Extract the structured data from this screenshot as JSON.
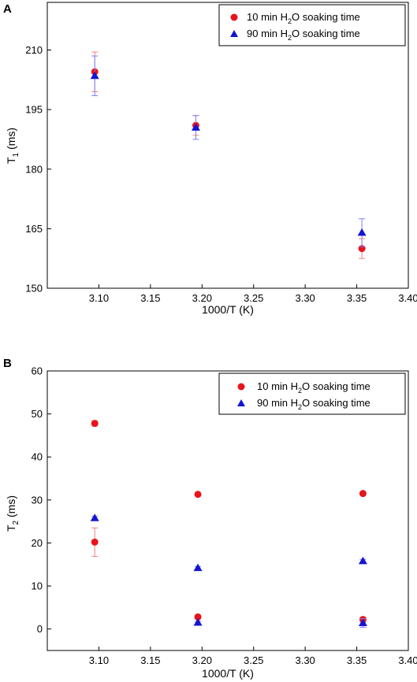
{
  "colors": {
    "series1": "#e8141b",
    "series2": "#1414d2",
    "err1": "#f08080",
    "err2": "#7f7fff"
  },
  "chart_data": [
    {
      "panel": "A",
      "type": "scatter",
      "xlabel": "1000/T (K)",
      "ylabel": "T",
      "ylabel_sub": "1",
      "ylabel_unit": " (ms)",
      "xlim": [
        3.05,
        3.4
      ],
      "ylim": [
        150,
        222
      ],
      "xticks": [
        "3.10",
        "3.15",
        "3.20",
        "3.25",
        "3.30",
        "3.35",
        "3.40"
      ],
      "yticks": [
        "150",
        "165",
        "180",
        "195",
        "210"
      ],
      "legend_position": "top-right",
      "series": [
        {
          "name_pre": "10 min H",
          "name_sub": "2",
          "name_post": "O soaking time",
          "marker": "circle",
          "points": [
            {
              "x": 3.096,
              "y": 204.5,
              "err": 5.0
            },
            {
              "x": 3.194,
              "y": 191.0,
              "err": 2.5
            },
            {
              "x": 3.355,
              "y": 160.0,
              "err": 2.5
            }
          ]
        },
        {
          "name_pre": "90 min H",
          "name_sub": "2",
          "name_post": "O soaking time",
          "marker": "triangle",
          "points": [
            {
              "x": 3.096,
              "y": 203.5,
              "err": 5.0
            },
            {
              "x": 3.194,
              "y": 190.5,
              "err": 3.0
            },
            {
              "x": 3.355,
              "y": 164.0,
              "err": 3.5
            }
          ]
        }
      ]
    },
    {
      "panel": "B",
      "type": "scatter",
      "xlabel": "1000/T (K)",
      "ylabel": "T",
      "ylabel_sub": "2",
      "ylabel_unit": " (ms)",
      "xlim": [
        3.05,
        3.4
      ],
      "ylim": [
        -5,
        60
      ],
      "xticks": [
        "3.10",
        "3.15",
        "3.20",
        "3.25",
        "3.30",
        "3.35",
        "3.40"
      ],
      "yticks": [
        "0",
        "10",
        "20",
        "30",
        "40",
        "50",
        "60"
      ],
      "legend_position": "top-right",
      "series": [
        {
          "name_pre": "10 min H",
          "name_sub": "2",
          "name_post": "O soaking time",
          "marker": "circle",
          "points": [
            {
              "x": 3.096,
              "y": 47.8,
              "err": 0.6
            },
            {
              "x": 3.096,
              "y": 20.2,
              "err": 3.3
            },
            {
              "x": 3.196,
              "y": 31.3,
              "err": 0.3
            },
            {
              "x": 3.196,
              "y": 2.8,
              "err": 0.4
            },
            {
              "x": 3.356,
              "y": 31.5,
              "err": 0.3
            },
            {
              "x": 3.356,
              "y": 2.2,
              "err": 0.6
            }
          ]
        },
        {
          "name_pre": "90 min H",
          "name_sub": "2",
          "name_post": "O soaking time",
          "marker": "triangle",
          "points": [
            {
              "x": 3.096,
              "y": 25.8,
              "err": 0.4
            },
            {
              "x": 3.196,
              "y": 14.2,
              "err": 0.3
            },
            {
              "x": 3.196,
              "y": 1.5,
              "err": 0.3
            },
            {
              "x": 3.356,
              "y": 15.8,
              "err": 0.4
            },
            {
              "x": 3.356,
              "y": 1.4,
              "err": 1.0
            }
          ]
        }
      ]
    }
  ]
}
